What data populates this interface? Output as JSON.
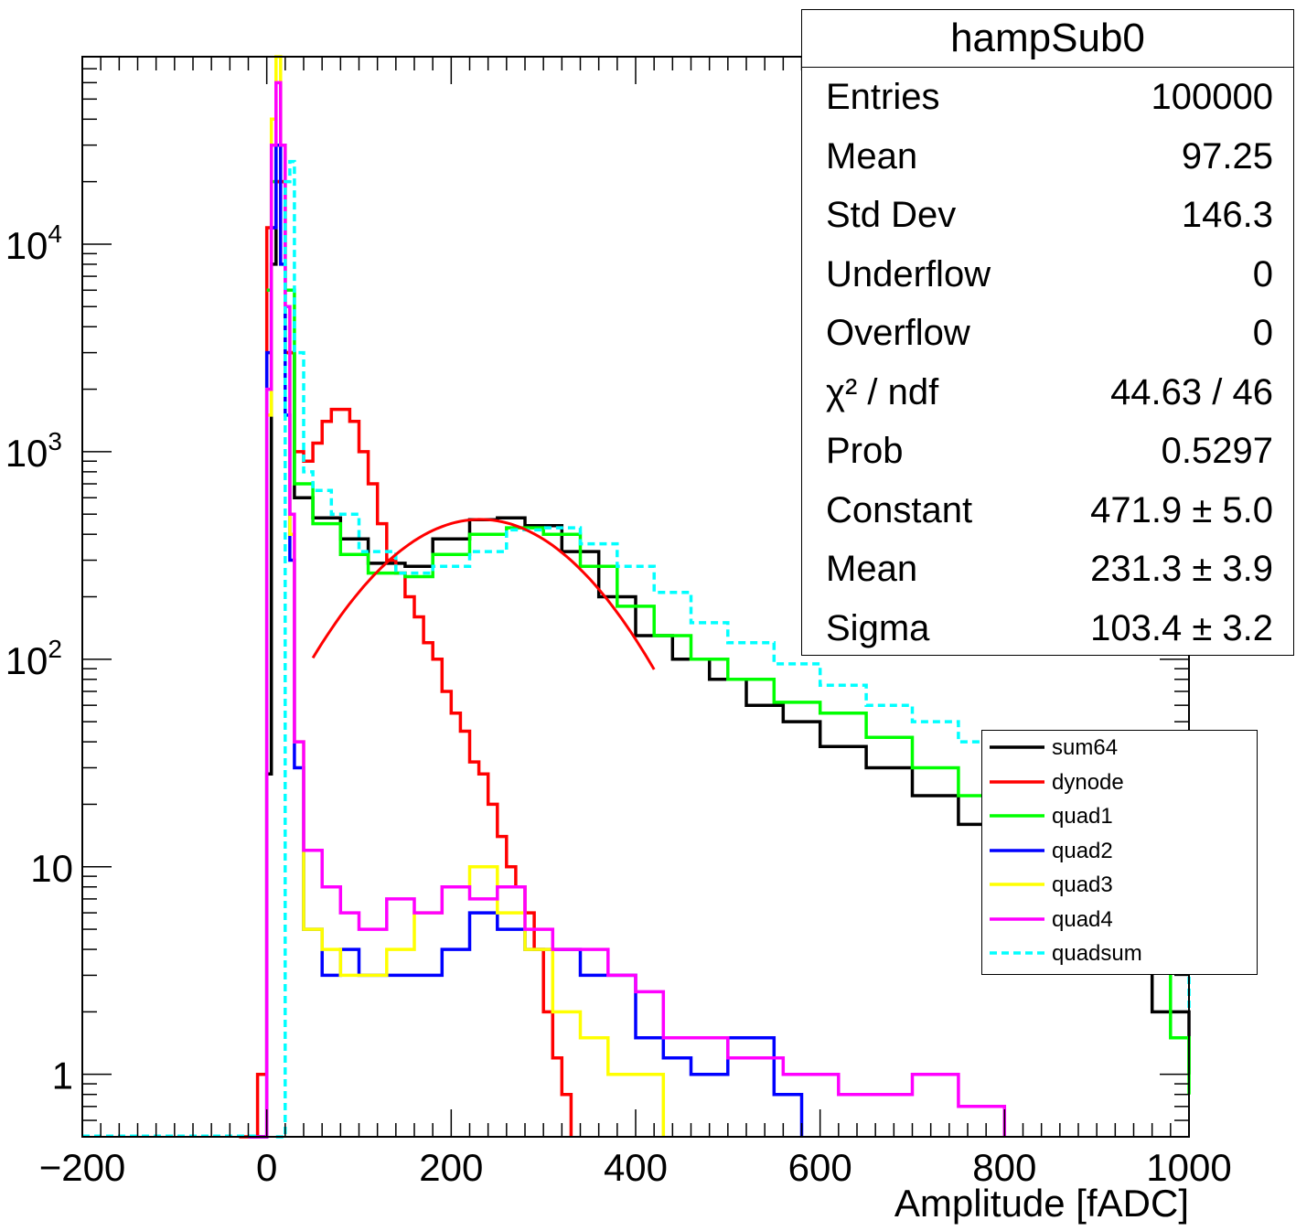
{
  "chart_data": {
    "type": "line",
    "title": "",
    "xlabel": "Amplitude [fADC]",
    "ylabel": "",
    "xlim": [
      -200,
      1000
    ],
    "ylim": [
      0.5,
      80000
    ],
    "ylog": true,
    "xticks": [
      {
        "value": -200,
        "label": "−200"
      },
      {
        "value": 0,
        "label": "0"
      },
      {
        "value": 200,
        "label": "200"
      },
      {
        "value": 400,
        "label": "400"
      },
      {
        "value": 600,
        "label": "600"
      },
      {
        "value": 800,
        "label": "800"
      },
      {
        "value": 1000,
        "label": "1000"
      }
    ],
    "yticks": [
      {
        "value": 1,
        "label": "1",
        "exp": ""
      },
      {
        "value": 10,
        "label": "10",
        "exp": ""
      },
      {
        "value": 100,
        "label": "10",
        "exp": "2"
      },
      {
        "value": 1000,
        "label": "10",
        "exp": "3"
      },
      {
        "value": 10000,
        "label": "10",
        "exp": "4"
      }
    ],
    "series": [
      {
        "name": "sum64",
        "color": "#000000",
        "dash": false,
        "x": [
          -20,
          0,
          5,
          10,
          20,
          30,
          50,
          80,
          110,
          150,
          180,
          220,
          250,
          280,
          320,
          360,
          400,
          440,
          480,
          520,
          560,
          600,
          650,
          700,
          750,
          800,
          830,
          860,
          880,
          900,
          960,
          1000
        ],
        "y": [
          0.5,
          28,
          8000,
          20000,
          3000,
          600,
          480,
          380,
          290,
          280,
          380,
          470,
          480,
          440,
          330,
          200,
          130,
          100,
          80,
          60,
          50,
          38,
          30,
          22,
          16,
          11,
          9,
          8,
          6,
          4,
          2,
          1
        ]
      },
      {
        "name": "dynode",
        "color": "#ff0000",
        "dash": false,
        "x": [
          -30,
          -10,
          0,
          10,
          20,
          30,
          40,
          50,
          60,
          70,
          80,
          90,
          100,
          110,
          120,
          130,
          140,
          150,
          160,
          170,
          180,
          190,
          200,
          210,
          220,
          230,
          240,
          250,
          260,
          270,
          280,
          290,
          300,
          310,
          320,
          330
        ],
        "y": [
          0.5,
          1,
          12000,
          20000,
          3000,
          1000,
          900,
          1100,
          1400,
          1600,
          1600,
          1400,
          1000,
          700,
          450,
          300,
          260,
          200,
          160,
          120,
          100,
          70,
          55,
          45,
          32,
          28,
          20,
          14,
          10,
          8,
          6,
          4,
          2,
          1.2,
          0.8,
          0.5
        ]
      },
      {
        "name": "quad1",
        "color": "#00ff00",
        "dash": false,
        "x": [
          0,
          5,
          10,
          20,
          30,
          50,
          80,
          110,
          150,
          180,
          220,
          260,
          300,
          340,
          380,
          420,
          460,
          500,
          550,
          600,
          650,
          700,
          750,
          800,
          850,
          900,
          950,
          980,
          1000
        ],
        "y": [
          6000,
          20000,
          30000,
          6000,
          700,
          450,
          320,
          260,
          250,
          320,
          400,
          430,
          400,
          280,
          180,
          130,
          100,
          80,
          62,
          55,
          42,
          30,
          22,
          15,
          11,
          8,
          4,
          1.5,
          0.8
        ]
      },
      {
        "name": "quad2",
        "color": "#0000ff",
        "dash": false,
        "x": [
          -20,
          0,
          5,
          10,
          15,
          20,
          25,
          30,
          40,
          60,
          80,
          100,
          130,
          160,
          190,
          220,
          250,
          280,
          310,
          340,
          370,
          400,
          430,
          460,
          500,
          550,
          580
        ],
        "y": [
          0.5,
          3000,
          12000,
          30000,
          8000,
          1500,
          300,
          30,
          5,
          3,
          4,
          3,
          3,
          3,
          4,
          6,
          5,
          4,
          4,
          3,
          3,
          1.5,
          1.2,
          1,
          1.5,
          0.8,
          0.5
        ]
      },
      {
        "name": "quad3",
        "color": "#ffff00",
        "dash": false,
        "x": [
          0,
          5,
          10,
          15,
          20,
          25,
          30,
          40,
          60,
          80,
          100,
          130,
          160,
          190,
          220,
          250,
          280,
          310,
          340,
          370,
          400,
          430
        ],
        "y": [
          1500,
          40000,
          80000,
          30000,
          5000,
          400,
          40,
          5,
          4,
          3,
          3,
          4,
          6,
          8,
          10,
          6,
          4,
          2,
          1.5,
          1,
          1,
          0.5
        ]
      },
      {
        "name": "quad4",
        "color": "#ff00ff",
        "dash": false,
        "x": [
          -20,
          0,
          5,
          10,
          15,
          20,
          25,
          30,
          40,
          60,
          80,
          100,
          130,
          160,
          190,
          220,
          250,
          280,
          310,
          340,
          370,
          400,
          430,
          460,
          500,
          560,
          620,
          700,
          750,
          800
        ],
        "y": [
          0.5,
          2000,
          30000,
          60000,
          30000,
          5000,
          500,
          40,
          12,
          8,
          6,
          5,
          7,
          6,
          8,
          7,
          8,
          5,
          4,
          4,
          3,
          2.5,
          1.5,
          1.5,
          1.2,
          1,
          0.8,
          1,
          0.7,
          0.5
        ]
      },
      {
        "name": "quadsum",
        "color": "#00ffff",
        "dash": true,
        "x": [
          10,
          20,
          25,
          30,
          40,
          50,
          70,
          100,
          140,
          180,
          220,
          260,
          300,
          340,
          380,
          420,
          460,
          500,
          550,
          600,
          650,
          700,
          750,
          800,
          850,
          900,
          950,
          980,
          1000
        ],
        "y": [
          0.5,
          20000,
          25000,
          3000,
          800,
          650,
          500,
          330,
          260,
          280,
          330,
          420,
          430,
          360,
          280,
          210,
          150,
          120,
          95,
          75,
          60,
          50,
          40,
          32,
          24,
          16,
          8,
          4,
          2
        ]
      },
      {
        "name": "fit",
        "color": "#ff0000",
        "dash": false,
        "fit": true,
        "x": [],
        "y": []
      }
    ],
    "fit": {
      "constant": 471.9,
      "mean": 231.3,
      "sigma": 103.4,
      "xmin": 50,
      "xmax": 420
    },
    "grid": false,
    "legend_position": "right"
  },
  "stats_box": {
    "title": "hampSub0",
    "rows": [
      {
        "label": "Entries",
        "value": "100000"
      },
      {
        "label": "Mean",
        "value": "97.25"
      },
      {
        "label": "Std Dev",
        "value": "146.3"
      },
      {
        "label": "Underflow",
        "value": "0"
      },
      {
        "label": "Overflow",
        "value": "0"
      },
      {
        "label": "χ² / ndf",
        "value": "44.63 / 46"
      },
      {
        "label": "Prob",
        "value": "0.5297"
      },
      {
        "label": "Constant",
        "value": "471.9 ± 5.0"
      },
      {
        "label": "Mean",
        "value": "231.3 ± 3.9"
      },
      {
        "label": "Sigma",
        "value": "103.4 ± 3.2"
      }
    ]
  },
  "legend": {
    "items": [
      {
        "label": "sum64",
        "color": "#000000",
        "dash": false
      },
      {
        "label": "dynode",
        "color": "#ff0000",
        "dash": false
      },
      {
        "label": "quad1",
        "color": "#00ff00",
        "dash": false
      },
      {
        "label": "quad2",
        "color": "#0000ff",
        "dash": false
      },
      {
        "label": "quad3",
        "color": "#ffff00",
        "dash": false
      },
      {
        "label": "quad4",
        "color": "#ff00ff",
        "dash": false
      },
      {
        "label": "quadsum",
        "color": "#00ffff",
        "dash": true
      }
    ]
  }
}
